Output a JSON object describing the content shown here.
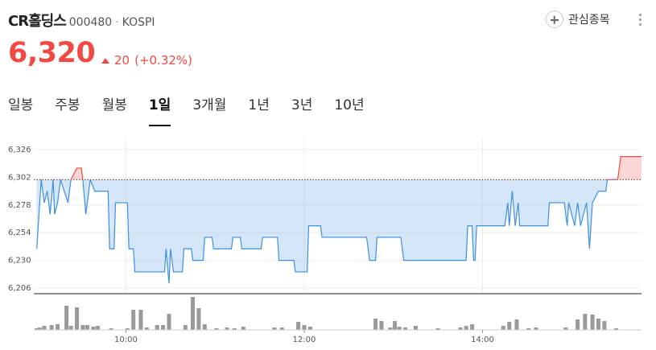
{
  "header": {
    "name": "CR홀딩스",
    "code": "000480",
    "market": "KOSPI",
    "watch_button": "관심종목",
    "price": "6,320",
    "change": "20",
    "change_pct": "(+0.32%)"
  },
  "tabs": {
    "items": [
      "일봉",
      "주봉",
      "월봉",
      "1일",
      "3개월",
      "1년",
      "3년",
      "10년"
    ],
    "active": 3
  },
  "chart_data": [
    {
      "type": "line",
      "base": 6300,
      "up_color": "#f04a45",
      "down_color": "#3d8fe0",
      "grid": true,
      "xlim": [
        "08:58",
        "15:47"
      ],
      "xticks": [
        "10:00",
        "12:00",
        "14:00"
      ],
      "ylim": [
        6206,
        6326
      ],
      "yticks": [
        {
          "value": 6206,
          "label": "6,206"
        },
        {
          "value": 6230,
          "label": "6,230"
        },
        {
          "value": 6254,
          "label": "6,254"
        },
        {
          "value": 6278,
          "label": "6,278"
        },
        {
          "value": 6302,
          "label": "6,302"
        },
        {
          "value": 6326,
          "label": "6,326"
        }
      ],
      "x": [
        "09:00",
        "09:01",
        "09:03",
        "09:05",
        "09:07",
        "09:09",
        "09:11",
        "09:12",
        "09:14",
        "09:16",
        "09:21",
        "09:23",
        "09:27",
        "09:30",
        "09:31",
        "09:33",
        "09:35",
        "09:36",
        "09:39",
        "09:48",
        "09:49",
        "09:52",
        "09:53",
        "10:01",
        "10:02",
        "10:05",
        "10:06",
        "10:26",
        "10:27",
        "10:29",
        "10:30",
        "10:32",
        "10:38",
        "10:39",
        "10:44",
        "10:45",
        "10:52",
        "10:53",
        "10:58",
        "10:59",
        "11:11",
        "11:12",
        "11:17",
        "11:18",
        "11:31",
        "11:32",
        "11:42",
        "11:43",
        "11:53",
        "11:54",
        "12:02",
        "12:03",
        "12:11",
        "12:12",
        "12:42",
        "12:44",
        "12:48",
        "12:49",
        "13:05",
        "13:07",
        "13:49",
        "13:50",
        "13:53",
        "13:54",
        "13:55",
        "13:56",
        "14:15",
        "14:17",
        "14:18",
        "14:20",
        "14:22",
        "14:24",
        "14:25",
        "14:44",
        "14:45",
        "14:55",
        "14:57",
        "14:58",
        "15:02",
        "15:04",
        "15:06",
        "15:10",
        "15:12",
        "15:14",
        "15:18",
        "15:23",
        "15:24",
        "15:31",
        "15:33",
        "15:47"
      ],
      "values": [
        6240,
        6260,
        6300,
        6280,
        6290,
        6270,
        6300,
        6270,
        6280,
        6300,
        6280,
        6300,
        6310,
        6310,
        6300,
        6270,
        6290,
        6300,
        6290,
        6290,
        6240,
        6240,
        6280,
        6280,
        6240,
        6240,
        6220,
        6220,
        6240,
        6210,
        6240,
        6220,
        6220,
        6240,
        6240,
        6230,
        6230,
        6250,
        6250,
        6240,
        6240,
        6250,
        6250,
        6240,
        6240,
        6250,
        6250,
        6230,
        6230,
        6220,
        6220,
        6260,
        6260,
        6250,
        6250,
        6230,
        6230,
        6250,
        6250,
        6230,
        6230,
        6260,
        6260,
        6230,
        6230,
        6260,
        6260,
        6280,
        6260,
        6290,
        6260,
        6280,
        6260,
        6260,
        6280,
        6280,
        6260,
        6280,
        6260,
        6280,
        6260,
        6280,
        6240,
        6280,
        6290,
        6290,
        6300,
        6300,
        6320,
        6320
      ]
    },
    {
      "type": "bar",
      "color": "#9a9a9a",
      "xlim": [
        "08:58",
        "15:47"
      ],
      "xticks": [
        "10:00",
        "12:00",
        "14:00"
      ],
      "ylim": [
        0,
        45
      ],
      "x": [
        "09:00",
        "09:02",
        "09:05",
        "09:10",
        "09:14",
        "09:20",
        "09:23",
        "09:27",
        "09:31",
        "09:34",
        "09:38",
        "09:41",
        "09:50",
        "10:01",
        "10:05",
        "10:10",
        "10:14",
        "10:21",
        "10:25",
        "10:29",
        "10:40",
        "10:45",
        "10:49",
        "10:53",
        "11:01",
        "11:08",
        "11:13",
        "11:19",
        "11:40",
        "11:45",
        "11:56",
        "12:00",
        "12:04",
        "12:48",
        "12:52",
        "12:58",
        "13:01",
        "13:04",
        "13:08",
        "13:15",
        "13:30",
        "13:45",
        "13:49",
        "13:53",
        "14:14",
        "14:18",
        "14:23",
        "14:31",
        "14:36",
        "14:56",
        "15:04",
        "15:09",
        "15:14",
        "15:18",
        "15:22",
        "15:30"
      ],
      "values": [
        2,
        3,
        5,
        6,
        7,
        30,
        5,
        28,
        6,
        6,
        4,
        5,
        2,
        2,
        25,
        25,
        3,
        6,
        6,
        20,
        6,
        41,
        27,
        7,
        2,
        3,
        2,
        4,
        3,
        3,
        10,
        6,
        4,
        14,
        11,
        3,
        11,
        4,
        3,
        5,
        2,
        3,
        5,
        7,
        5,
        10,
        13,
        2,
        3,
        3,
        13,
        20,
        19,
        14,
        11,
        2
      ]
    }
  ]
}
